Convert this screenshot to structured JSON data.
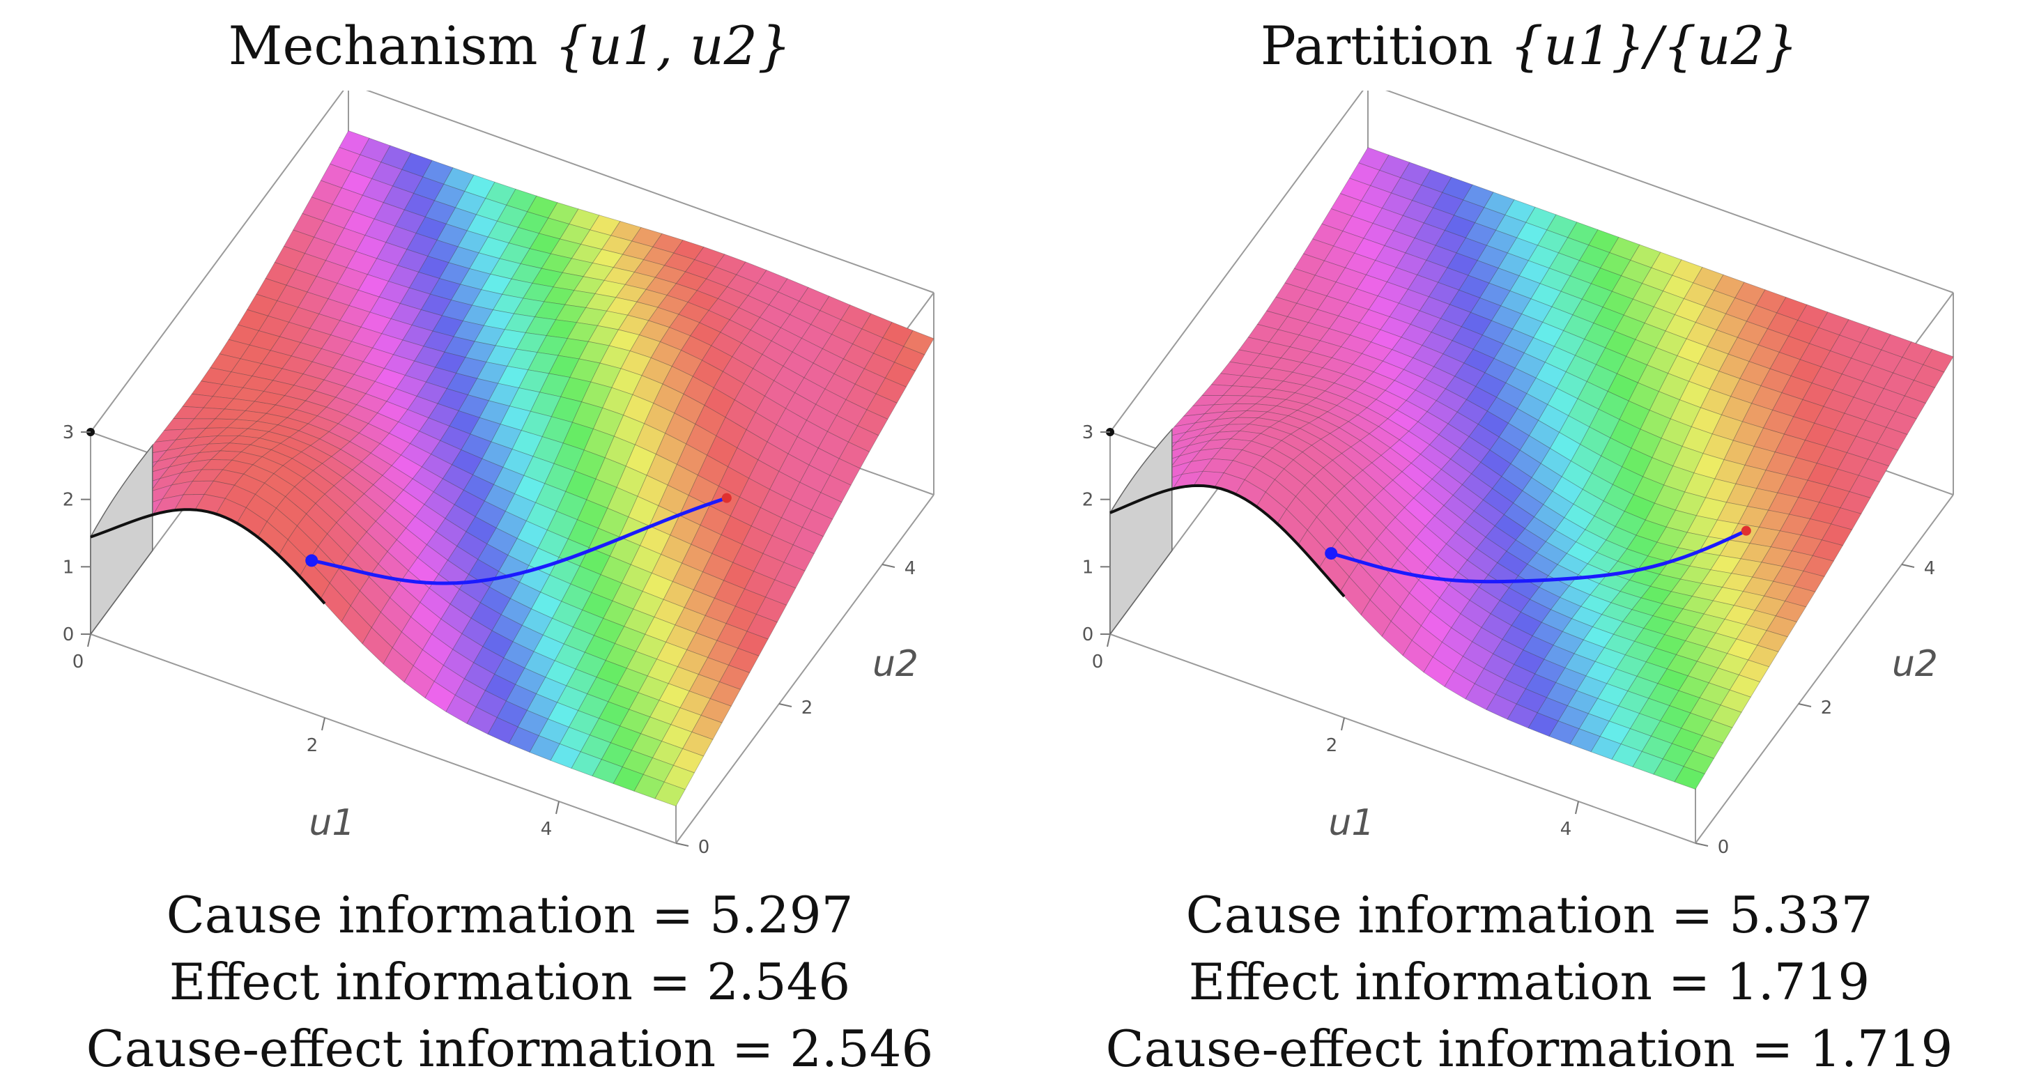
{
  "chart_data": [
    {
      "type": "surface3d",
      "title": "Mechanism {u1, u2}",
      "title_parts": {
        "prefix": "Mechanism",
        "set": "{u1, u2}"
      },
      "xlabel": "u1",
      "ylabel": "u2",
      "x_ticks": [
        "0",
        "2",
        "4"
      ],
      "y_ticks": [
        "0",
        "2",
        "4"
      ],
      "z_ticks": [
        "0",
        "1",
        "2",
        "3"
      ],
      "xlim": [
        0,
        5
      ],
      "ylim": [
        0,
        5
      ],
      "zlim": [
        0,
        3
      ],
      "colormap": "rainbow",
      "stats": [
        {
          "label": "Cause information",
          "value": "5.297"
        },
        {
          "label": "Effect information",
          "value": "2.546"
        },
        {
          "label": "Cause-effect information",
          "value": "2.546"
        }
      ]
    },
    {
      "type": "surface3d",
      "title": "Partition {u1}/{u2}",
      "title_parts": {
        "prefix": "Partition",
        "set": "{u1}/{u2}"
      },
      "xlabel": "u1",
      "ylabel": "u2",
      "x_ticks": [
        "0",
        "2",
        "4"
      ],
      "y_ticks": [
        "0",
        "2",
        "4"
      ],
      "z_ticks": [
        "0",
        "1",
        "2",
        "3"
      ],
      "xlim": [
        0,
        5
      ],
      "ylim": [
        0,
        5
      ],
      "zlim": [
        0,
        3
      ],
      "colormap": "rainbow",
      "stats": [
        {
          "label": "Cause information",
          "value": "5.337"
        },
        {
          "label": "Effect information",
          "value": "1.719"
        },
        {
          "label": "Cause-effect information",
          "value": "1.719"
        }
      ]
    }
  ],
  "equals_sign": "="
}
